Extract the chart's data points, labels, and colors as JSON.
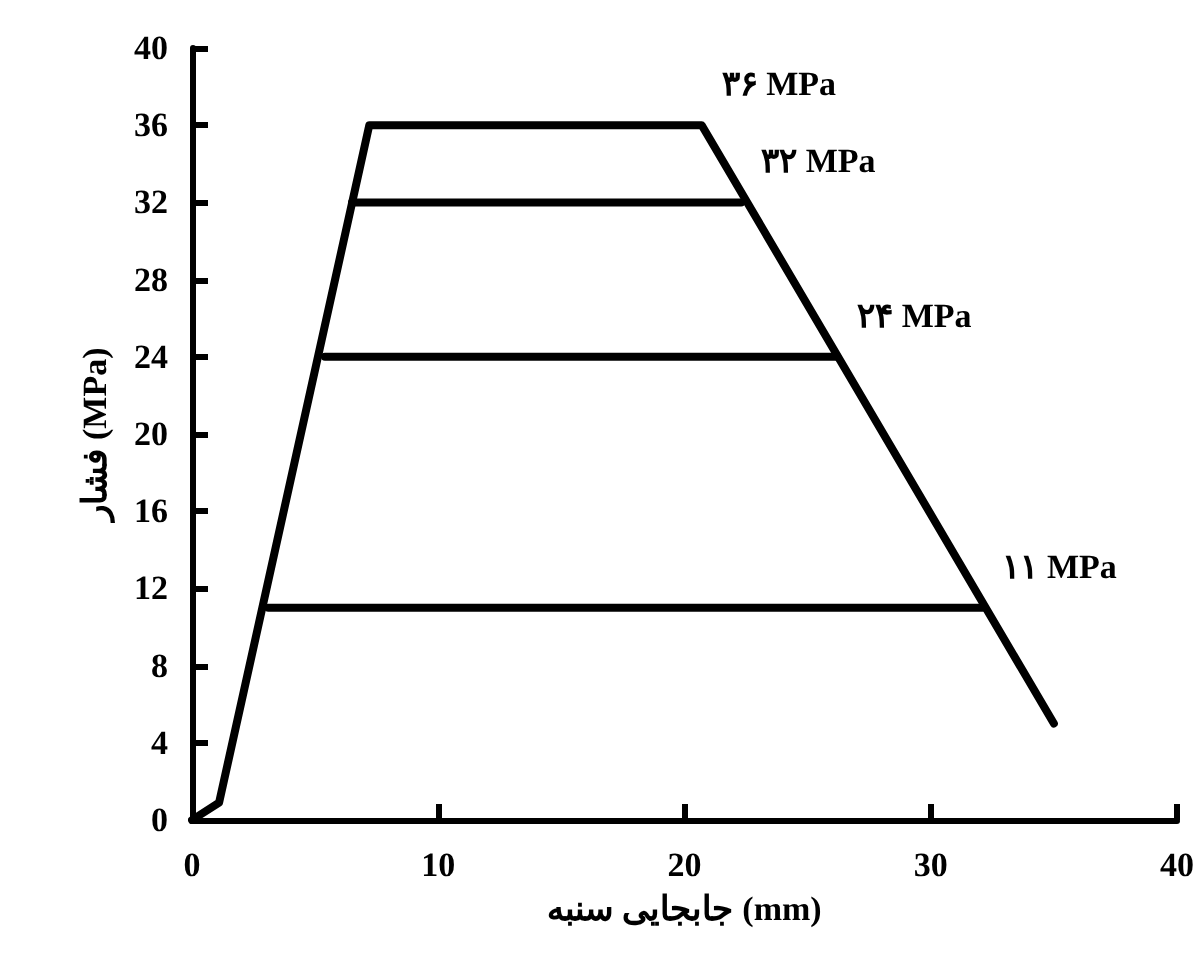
{
  "chart_data": {
    "type": "line",
    "xlabel": "جابجایی سنبه (mm)",
    "ylabel": "فشار (MPa)",
    "xlim": [
      0,
      40
    ],
    "xticks": [
      0,
      10,
      20,
      30,
      40
    ],
    "ylim": [
      0,
      40
    ],
    "yticks": [
      0,
      4,
      8,
      12,
      16,
      20,
      24,
      28,
      32,
      36,
      40
    ],
    "grid": false,
    "marker": "none",
    "line_style": "solid",
    "series": [
      {
        "color": "#000000",
        "x": [
          0,
          1.1,
          7.2,
          20.7,
          35
        ],
        "values": [
          0,
          0.9,
          36,
          36,
          5
        ]
      },
      {
        "color": "#000000",
        "x": [
          6.5,
          22.3
        ],
        "values": [
          32,
          32
        ]
      },
      {
        "color": "#000000",
        "x": [
          5.4,
          26.2
        ],
        "values": [
          24,
          24
        ]
      },
      {
        "color": "#000000",
        "x": [
          3.1,
          32.1
        ],
        "values": [
          11,
          11
        ]
      }
    ],
    "annotations": [
      {
        "text": "۳۶ MPa",
        "x": 20.7,
        "y": 36
      },
      {
        "text": "۳۲ MPa",
        "x": 22.3,
        "y": 32
      },
      {
        "text": "۲۴ MPa",
        "x": 26.2,
        "y": 24
      },
      {
        "text": "۱۱ MPa",
        "x": 32.1,
        "y": 11
      }
    ]
  }
}
